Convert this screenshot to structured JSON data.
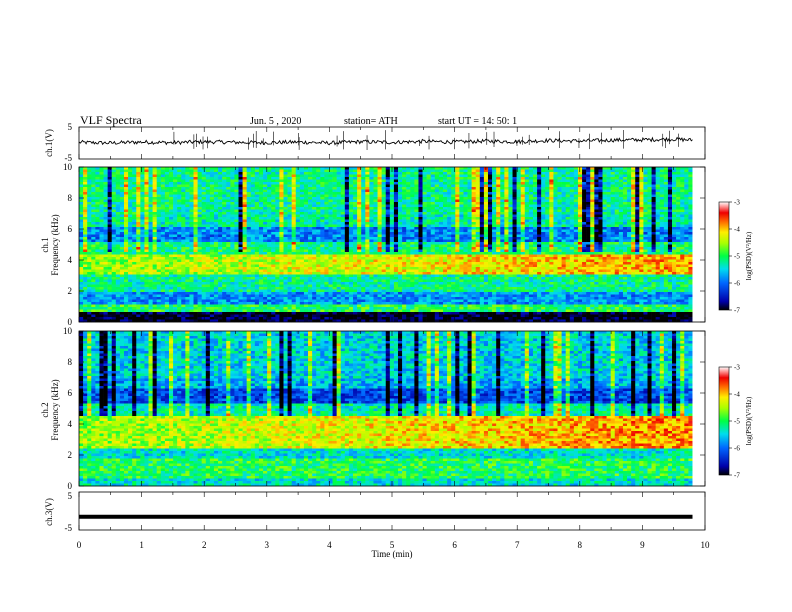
{
  "header": {
    "title": "VLF Spectra",
    "date": "Jun. 5 , 2020",
    "station": "station= ATH",
    "start": "start UT = 14: 50: 1"
  },
  "colors": {
    "spec_low": "#000000",
    "spec_mid": "#00ff00",
    "spec_high": "#ff0000",
    "cb_top": "#ffffff"
  },
  "chart_data": [
    {
      "type": "line",
      "panel": "ch1-timeseries",
      "ylabel": "ch.1(V)",
      "ylim": [
        -5,
        5
      ],
      "yticks": [
        "5",
        "-5"
      ],
      "xlim": [
        0,
        10
      ],
      "x": [
        0,
        0.5,
        1,
        1.5,
        2,
        2.5,
        3,
        3.5,
        4,
        4.5,
        5,
        5.5,
        6,
        6.5,
        7,
        7.5,
        8,
        8.5,
        9,
        9.5,
        9.8
      ],
      "y": [
        0.2,
        0.0,
        0.3,
        0.1,
        0.4,
        0.2,
        0.1,
        0.3,
        0.0,
        0.4,
        0.2,
        0.5,
        0.3,
        0.6,
        0.4,
        0.8,
        0.6,
        0.9,
        1.0,
        1.2,
        0.9
      ]
    },
    {
      "type": "heatmap",
      "panel": "ch1-spectrogram",
      "ylabel_top": "ch.1",
      "ylabel": "Frequency (kHz)",
      "ylim": [
        0,
        10
      ],
      "yticks": [
        "0",
        "2",
        "4",
        "6",
        "8",
        "10"
      ],
      "xlim": [
        0,
        9.8
      ],
      "colorbar": {
        "label": "log(PSD)(V²/Hz)",
        "range": [
          -7,
          -3
        ],
        "ticks": [
          "-3",
          "-4",
          "-5",
          "-6",
          "-7"
        ]
      },
      "bands": [
        {
          "f": [
            0,
            0.6
          ],
          "level": -7.0
        },
        {
          "f": [
            0.6,
            1.2
          ],
          "level": -5.0
        },
        {
          "f": [
            1.2,
            2.0
          ],
          "level": -5.8
        },
        {
          "f": [
            2.0,
            3.0
          ],
          "level": -5.2
        },
        {
          "f": [
            3.0,
            4.3
          ],
          "level": -4.6,
          "trend_end": -3.9
        },
        {
          "f": [
            4.3,
            5.2
          ],
          "level": -5.1
        },
        {
          "f": [
            5.2,
            6.2
          ],
          "level": -5.9
        },
        {
          "f": [
            6.2,
            7.0
          ],
          "level": -5.3
        },
        {
          "f": [
            7.0,
            10.0
          ],
          "level": -5.2
        }
      ]
    },
    {
      "type": "heatmap",
      "panel": "ch2-spectrogram",
      "ylabel_top": "ch.2",
      "ylabel": "Frequency (kHz)",
      "ylim": [
        0,
        10
      ],
      "yticks": [
        "0",
        "2",
        "4",
        "6",
        "8",
        "10"
      ],
      "xlim": [
        0,
        9.8
      ],
      "colorbar": {
        "label": "log(PSD)(V²/Hz)",
        "range": [
          -7,
          -3
        ],
        "ticks": [
          "-3",
          "-4",
          "-5",
          "-6",
          "-7"
        ]
      },
      "bands": [
        {
          "f": [
            0,
            0.5
          ],
          "level": -5.4
        },
        {
          "f": [
            0.5,
            1.8
          ],
          "level": -5.0
        },
        {
          "f": [
            1.8,
            2.5
          ],
          "level": -5.4
        },
        {
          "f": [
            2.5,
            4.5
          ],
          "level": -4.6,
          "trend_end": -3.8
        },
        {
          "f": [
            4.5,
            5.3
          ],
          "level": -5.3
        },
        {
          "f": [
            5.3,
            6.3
          ],
          "level": -6.2
        },
        {
          "f": [
            6.3,
            7.0
          ],
          "level": -5.7
        },
        {
          "f": [
            7.0,
            10.0
          ],
          "level": -5.5
        }
      ]
    },
    {
      "type": "line",
      "panel": "ch3-timeseries",
      "ylabel": "ch.3(V)",
      "ylim": [
        -5,
        5
      ],
      "yticks": [
        "5",
        "-5"
      ],
      "xlim": [
        0,
        10
      ],
      "xlabel": "Time (min)",
      "xticks": [
        "0",
        "1",
        "2",
        "3",
        "4",
        "5",
        "6",
        "7",
        "8",
        "9",
        "10"
      ],
      "x": [
        0,
        9.8
      ],
      "y": [
        -1.5,
        -1.5
      ]
    }
  ]
}
